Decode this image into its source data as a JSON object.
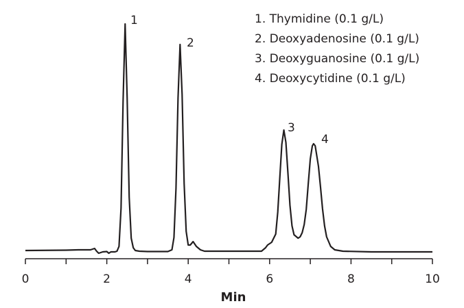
{
  "chart_data": {
    "type": "line",
    "xlabel": "Min",
    "legend_entries": [
      "1. Thymidine (0.1 g/L)",
      "2. Deoxyadenosine (0.1 g/L)",
      "3. Deoxyguanosine (0.1 g/L)",
      "4. Deoxycytidine (0.1 g/L)"
    ],
    "peak_labels": [
      "1",
      "2",
      "3",
      "4"
    ],
    "x": [
      0,
      1,
      1.3,
      1.6,
      1.7,
      1.75,
      1.8,
      1.9,
      2.0,
      2.05,
      2.1,
      2.2,
      2.25,
      2.3,
      2.35,
      2.4,
      2.45,
      2.5,
      2.55,
      2.6,
      2.65,
      2.7,
      2.8,
      3.0,
      3.5,
      3.6,
      3.65,
      3.7,
      3.75,
      3.8,
      3.85,
      3.9,
      3.95,
      4.0,
      4.05,
      4.12,
      4.2,
      4.3,
      4.4,
      5.0,
      5.8,
      5.9,
      5.95,
      6.0,
      6.05,
      6.15,
      6.2,
      6.25,
      6.3,
      6.35,
      6.4,
      6.45,
      6.5,
      6.55,
      6.6,
      6.7,
      6.75,
      6.8,
      6.85,
      6.9,
      6.95,
      7.0,
      7.05,
      7.08,
      7.12,
      7.2,
      7.25,
      7.3,
      7.35,
      7.4,
      7.5,
      7.6,
      7.8,
      8.5,
      10
    ],
    "series": [
      {
        "color": "#231f20",
        "values": [
          2,
          2.5,
          3,
          3,
          5,
          1,
          -2,
          0,
          0.5,
          -2,
          0,
          0,
          1,
          8,
          64,
          220,
          333,
          225,
          80,
          20,
          6,
          2,
          1,
          0.5,
          0.5,
          3,
          21,
          93,
          225,
          303,
          230,
          100,
          30,
          10,
          10,
          15,
          8,
          3,
          1,
          1,
          1,
          6,
          10,
          12,
          14,
          26,
          58,
          108,
          157,
          178,
          160,
          115,
          68,
          38,
          25,
          20,
          22,
          28,
          40,
          62,
          100,
          136,
          155,
          158,
          155,
          125,
          95,
          63,
          38,
          22,
          8,
          3,
          1,
          0,
          0
        ]
      }
    ],
    "xlim": [
      0,
      10
    ],
    "xticks": [
      0,
      2,
      4,
      6,
      8,
      10
    ],
    "xminor_ticks": [
      1,
      3,
      5,
      7,
      9
    ],
    "ylim": [
      -10,
      358
    ]
  }
}
